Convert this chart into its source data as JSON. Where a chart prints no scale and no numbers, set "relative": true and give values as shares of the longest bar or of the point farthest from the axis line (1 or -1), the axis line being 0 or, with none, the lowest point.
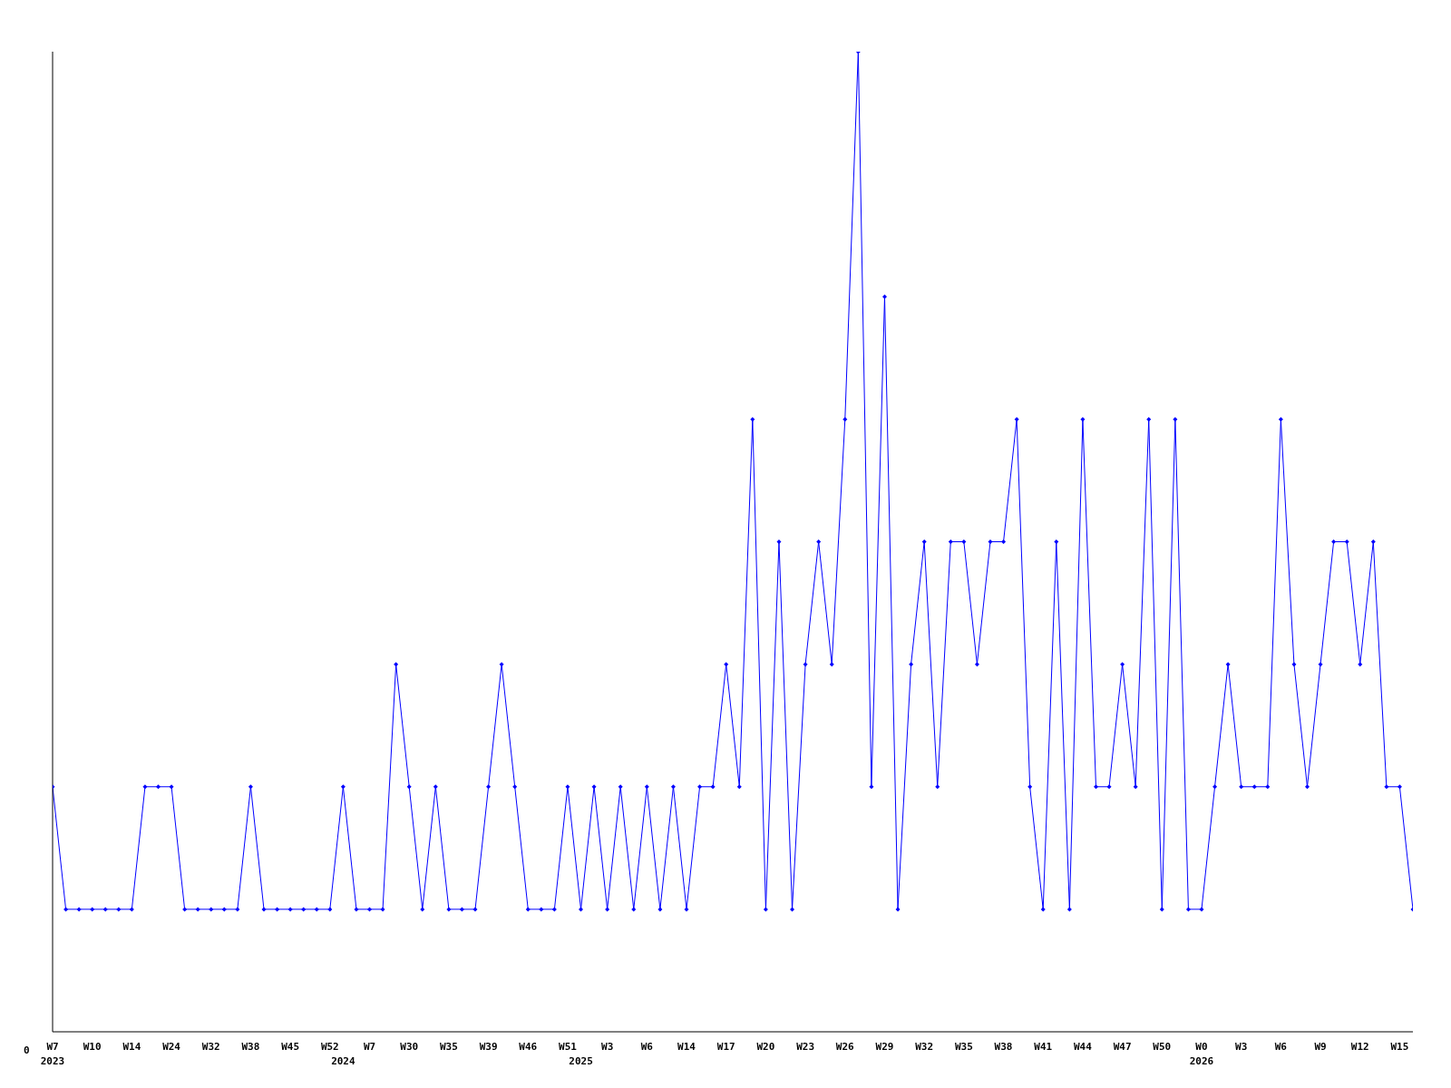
{
  "chart_data": {
    "type": "line",
    "relative": true,
    "marker": "diamond",
    "line_style": "solid",
    "annotations": [
      "0"
    ],
    "categories": [
      "W7\n2023",
      null,
      null,
      "W10",
      null,
      null,
      "W14",
      null,
      null,
      "W24",
      null,
      null,
      "W32",
      null,
      null,
      "W38",
      null,
      null,
      "W45",
      null,
      null,
      "W52",
      "\n2024",
      null,
      "W7",
      null,
      null,
      "W30",
      null,
      null,
      "W35",
      null,
      null,
      "W39",
      null,
      null,
      "W46",
      null,
      null,
      "W51",
      "\n2025",
      null,
      "W3",
      null,
      null,
      "W6",
      null,
      null,
      "W14",
      null,
      null,
      "W17",
      null,
      null,
      "W20",
      null,
      null,
      "W23",
      null,
      null,
      "W26",
      null,
      null,
      "W29",
      null,
      null,
      "W32",
      null,
      null,
      "W35",
      null,
      null,
      "W38",
      null,
      null,
      "W41",
      null,
      null,
      "W44",
      null,
      null,
      "W47",
      null,
      null,
      "W50",
      null,
      null,
      "W0\n2026",
      null,
      null,
      "W3",
      null,
      null,
      "W6",
      null,
      null,
      "W9",
      null,
      null,
      "W12",
      null,
      null,
      "W15",
      null
    ],
    "series": [
      {
        "color": "#0000ff",
        "values": [
          0.25,
          0.125,
          0.125,
          0.125,
          0.125,
          0.125,
          0.125,
          0.25,
          0.25,
          0.25,
          0.125,
          0.125,
          0.125,
          0.125,
          0.125,
          0.25,
          0.125,
          0.125,
          0.125,
          0.125,
          0.125,
          0.125,
          0.25,
          0.125,
          0.125,
          0.125,
          0.375,
          0.25,
          0.125,
          0.25,
          0.125,
          0.125,
          0.125,
          0.25,
          0.375,
          0.25,
          0.125,
          0.125,
          0.125,
          0.25,
          0.125,
          0.25,
          0.125,
          0.25,
          0.125,
          0.25,
          0.125,
          0.25,
          0.125,
          0.25,
          0.25,
          0.375,
          0.25,
          0.625,
          0.125,
          0.5,
          0.125,
          0.375,
          0.5,
          0.375,
          0.625,
          1,
          0.25,
          0.75,
          0.125,
          0.375,
          0.5,
          0.25,
          0.5,
          0.5,
          0.375,
          0.5,
          0.5,
          0.625,
          0.25,
          0.125,
          0.5,
          0.125,
          0.625,
          0.25,
          0.25,
          0.375,
          0.25,
          0.625,
          0.125,
          0.625,
          0.125,
          0.125,
          0.25,
          0.375,
          0.25,
          0.25,
          0.25,
          0.625,
          0.375,
          0.25,
          0.375,
          0.5,
          0.5,
          0.375,
          0.5,
          0.25,
          0.25,
          0.125
        ]
      }
    ]
  }
}
